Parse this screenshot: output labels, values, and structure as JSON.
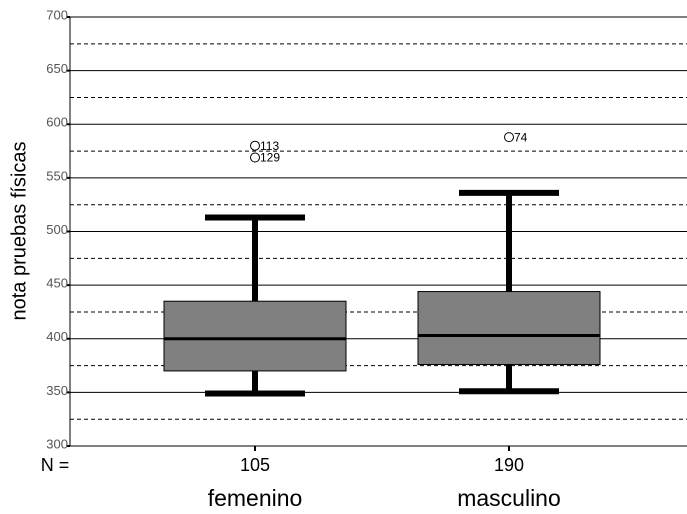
{
  "chart_data": {
    "type": "box",
    "y_label": "nota pruebas físicas",
    "n_label": "N =",
    "categories": [
      "femenino",
      "masculino"
    ],
    "n": [
      105,
      190
    ],
    "series": [
      {
        "color": "#808080",
        "min": [
          349,
          351
        ],
        "q1": [
          370,
          376
        ],
        "median": [
          400,
          403
        ],
        "q3": [
          435,
          444
        ],
        "max": [
          513,
          536
        ],
        "outliers": [
          [
            {
              "case": 113,
              "value": 580
            },
            {
              "case": 129,
              "value": 569
            }
          ],
          [
            {
              "case": 74,
              "value": 588
            }
          ]
        ]
      }
    ],
    "ylim": [
      300,
      700
    ],
    "yticks": [
      300,
      350,
      400,
      450,
      500,
      550,
      600,
      650,
      700
    ],
    "yminor": [
      325,
      375,
      425,
      475,
      525,
      575,
      625,
      675
    ],
    "grid": true
  }
}
